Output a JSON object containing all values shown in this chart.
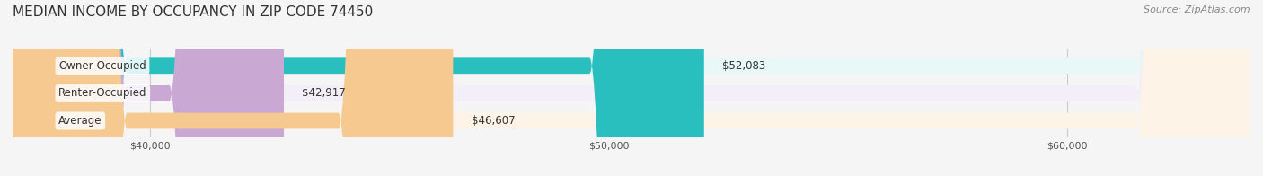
{
  "title": "MEDIAN INCOME BY OCCUPANCY IN ZIP CODE 74450",
  "source": "Source: ZipAtlas.com",
  "categories": [
    "Owner-Occupied",
    "Renter-Occupied",
    "Average"
  ],
  "values": [
    52083,
    42917,
    46607
  ],
  "bar_colors": [
    "#2abfbf",
    "#c9a8d4",
    "#f5c990"
  ],
  "bar_bg_colors": [
    "#e8f8f8",
    "#f3eef7",
    "#fdf3e7"
  ],
  "value_labels": [
    "$52,083",
    "$42,917",
    "$46,607"
  ],
  "xlim_left": 37000,
  "xlim_right": 64000,
  "xticks": [
    40000,
    50000,
    60000
  ],
  "xtick_labels": [
    "$40,000",
    "$50,000",
    "$60,000"
  ],
  "title_fontsize": 11,
  "source_fontsize": 8,
  "label_fontsize": 8.5,
  "value_fontsize": 8.5,
  "background_color": "#f5f5f5"
}
